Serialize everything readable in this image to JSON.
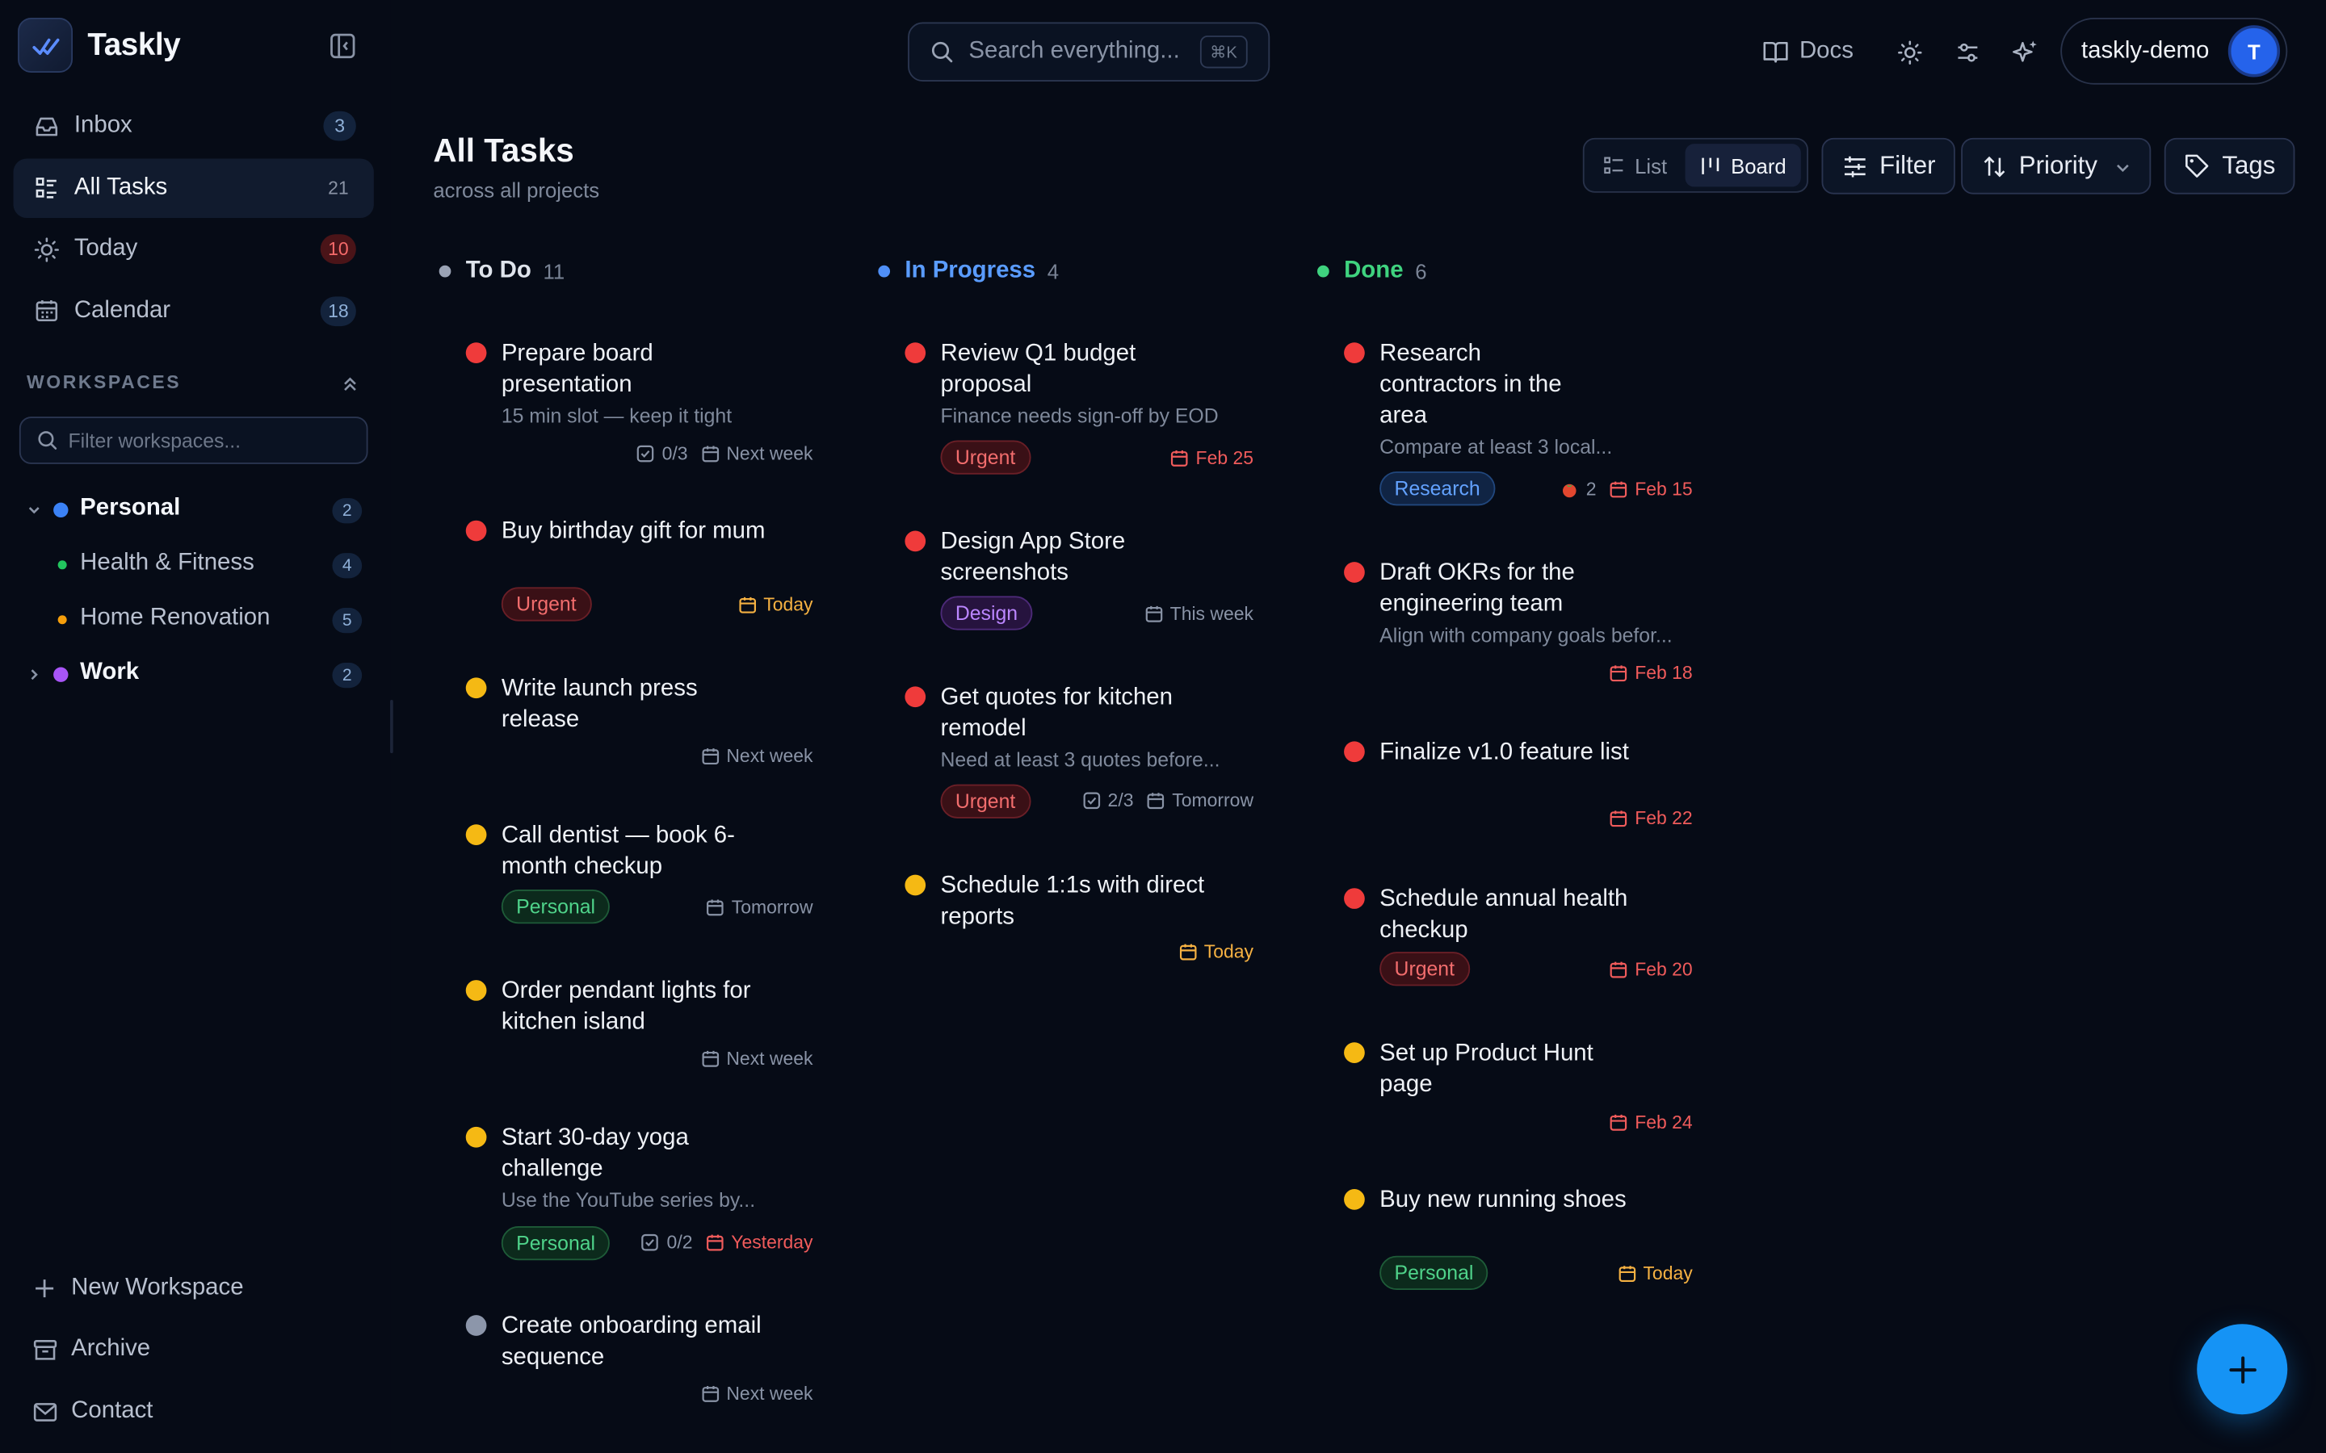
{
  "app": {
    "name": "Taskly"
  },
  "sidebar": {
    "nav": [
      {
        "label": "Inbox",
        "count": "3",
        "icon": "inbox-icon"
      },
      {
        "label": "All Tasks",
        "count": "21",
        "icon": "list-icon"
      },
      {
        "label": "Today",
        "count": "10",
        "icon": "sun-icon"
      },
      {
        "label": "Calendar",
        "count": "18",
        "icon": "calendar-icon"
      }
    ],
    "workspaces_header": "WORKSPACES",
    "workspace_filter_placeholder": "Filter workspaces...",
    "workspaces": [
      {
        "label": "Personal",
        "count": "2",
        "color": "#3b82f6"
      },
      {
        "label": "Health & Fitness",
        "count": "4",
        "color": "#22c55e"
      },
      {
        "label": "Home Renovation",
        "count": "5",
        "color": "#f59e0b"
      },
      {
        "label": "Work",
        "count": "2",
        "color": "#a855f7"
      }
    ],
    "bottom": [
      {
        "label": "New Workspace",
        "icon": "plus-icon"
      },
      {
        "label": "Archive",
        "icon": "archive-icon"
      },
      {
        "label": "Contact",
        "icon": "mail-icon"
      }
    ]
  },
  "topbar": {
    "search_placeholder": "Search everything...",
    "search_shortcut": "⌘K",
    "docs_label": "Docs",
    "user_name": "taskly-demo",
    "avatar_initial": "T"
  },
  "page": {
    "title": "All Tasks",
    "subtitle": "across all projects",
    "view_list": "List",
    "view_board": "Board",
    "filter_label": "Filter",
    "sort_label": "Priority",
    "tags_label": "Tags"
  },
  "colors": {
    "accent": "#1593f5",
    "high": "#ef3b3b",
    "medium": "#f5b914",
    "low": "#8c96aa",
    "todo": "#9aa3b5",
    "in_progress": "#4f8ff7",
    "done": "#3fd37f"
  },
  "board": {
    "columns": [
      {
        "title": "To Do",
        "count": "11",
        "cards": [
          {
            "title": "Prepare board presentation",
            "desc": "15 min slot — keep it tight",
            "subtasks": "0/3",
            "due": "Next week"
          },
          {
            "title": "Buy birthday gift for mum",
            "tag": "Urgent",
            "due": "Today"
          },
          {
            "title": "Write launch press release",
            "due": "Next week"
          },
          {
            "title": "Call dentist — book 6-month checkup",
            "tag": "Personal",
            "due": "Tomorrow"
          },
          {
            "title": "Order pendant lights for kitchen island",
            "due": "Next week"
          },
          {
            "title": "Start 30-day yoga challenge",
            "desc": "Use the YouTube series by...",
            "tag": "Personal",
            "subtasks": "0/2",
            "due": "Yesterday"
          },
          {
            "title": "Create onboarding email sequence",
            "due": "Next week"
          }
        ]
      },
      {
        "title": "In Progress",
        "count": "4",
        "cards": [
          {
            "title": "Review Q1 budget proposal",
            "desc": "Finance needs sign-off by EOD",
            "tag": "Urgent",
            "due": "Feb 25"
          },
          {
            "title": "Design App Store screenshots",
            "tag": "Design",
            "due": "This week"
          },
          {
            "title": "Get quotes for kitchen remodel",
            "desc": "Need at least 3 quotes before...",
            "tag": "Urgent",
            "subtasks": "2/3",
            "due": "Tomorrow"
          },
          {
            "title": "Schedule 1:1s with direct reports",
            "due": "Today"
          }
        ]
      },
      {
        "title": "Done",
        "count": "6",
        "cards": [
          {
            "title": "Research contractors in the area",
            "desc": "Compare at least 3 local...",
            "tag": "Research",
            "pomodoros": "2",
            "due": "Feb 15"
          },
          {
            "title": "Draft OKRs for the engineering team",
            "desc": "Align with company goals befor...",
            "due": "Feb 18"
          },
          {
            "title": "Finalize v1.0 feature list",
            "due": "Feb 22"
          },
          {
            "title": "Schedule annual health checkup",
            "tag": "Urgent",
            "due": "Feb 20"
          },
          {
            "title": "Set up Product Hunt page",
            "due": "Feb 24"
          },
          {
            "title": "Buy new running shoes",
            "tag": "Personal",
            "due": "Today"
          }
        ]
      }
    ]
  }
}
